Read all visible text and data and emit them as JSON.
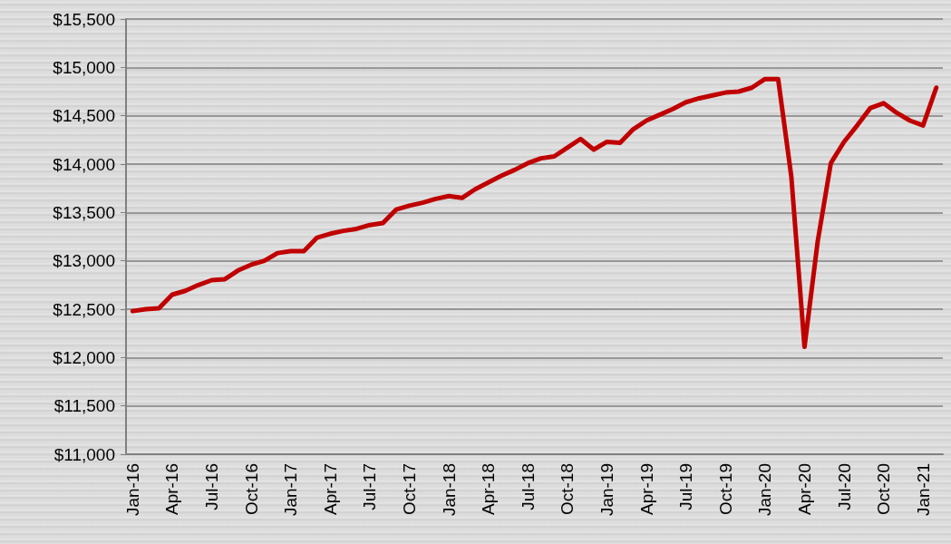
{
  "chart_data": {
    "type": "line",
    "categories": [
      "Jan-16",
      null,
      null,
      "Apr-16",
      null,
      null,
      "Jul-16",
      null,
      null,
      "Oct-16",
      null,
      null,
      "Jan-17",
      null,
      null,
      "Apr-17",
      null,
      null,
      "Jul-17",
      null,
      null,
      "Oct-17",
      null,
      null,
      "Jan-18",
      null,
      null,
      "Apr-18",
      null,
      null,
      "Jul-18",
      null,
      null,
      "Oct-18",
      null,
      null,
      "Jan-19",
      null,
      null,
      "Apr-19",
      null,
      null,
      "Jul-19",
      null,
      null,
      "Oct-19",
      null,
      null,
      "Jan-20",
      null,
      null,
      "Apr-20",
      null,
      null,
      "Jul-20",
      null,
      null,
      "Oct-20",
      null,
      null,
      "Jan-21",
      null
    ],
    "series": [
      {
        "color": "#c00000",
        "values": [
          12480,
          12500,
          12510,
          12650,
          12690,
          12750,
          12800,
          12810,
          12900,
          12960,
          13000,
          13080,
          13100,
          13100,
          13240,
          13280,
          13310,
          13330,
          13370,
          13390,
          13530,
          13570,
          13600,
          13640,
          13670,
          13650,
          13740,
          13810,
          13880,
          13940,
          14010,
          14060,
          14080,
          14170,
          14260,
          14150,
          14230,
          14220,
          14360,
          14450,
          14510,
          14570,
          14640,
          14680,
          14710,
          14740,
          14750,
          14790,
          14880,
          14880,
          13870,
          12110,
          13200,
          14010,
          14230,
          14400,
          14580,
          14630,
          14530,
          14450,
          14400,
          14790
        ]
      }
    ],
    "ylim": [
      11000,
      15500
    ],
    "yticks": [
      {
        "value": 11000,
        "label": "$11,000"
      },
      {
        "value": 11500,
        "label": "$11,500"
      },
      {
        "value": 12000,
        "label": "$12,000"
      },
      {
        "value": 12500,
        "label": "$12,500"
      },
      {
        "value": 13000,
        "label": "$13,000"
      },
      {
        "value": 13500,
        "label": "$13,500"
      },
      {
        "value": 14000,
        "label": "$14,000"
      },
      {
        "value": 14500,
        "label": "$14,500"
      },
      {
        "value": 15000,
        "label": "$15,000"
      },
      {
        "value": 15500,
        "label": "$15,500"
      }
    ],
    "grid": "y",
    "marker": "none",
    "line_style": "solid"
  }
}
